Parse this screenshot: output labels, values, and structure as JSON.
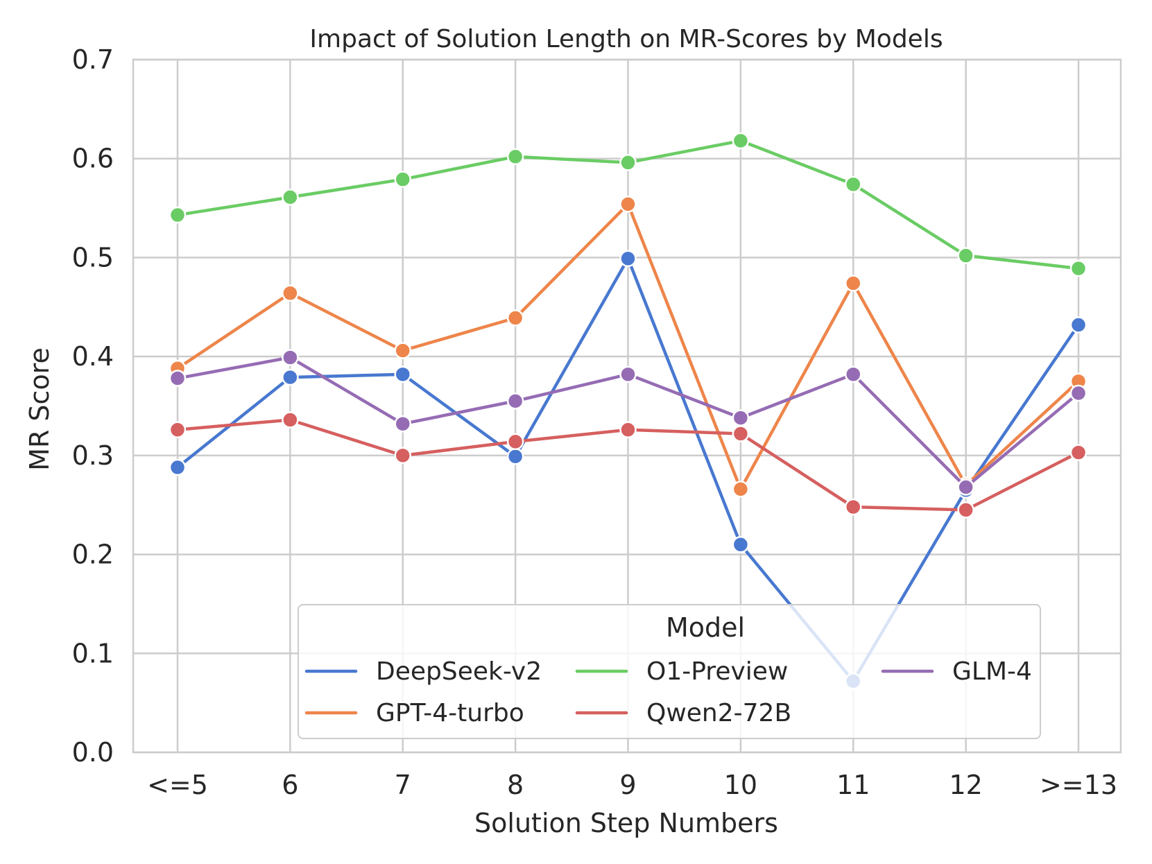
{
  "chart_data": {
    "type": "line",
    "title": "Impact of Solution Length on MR-Scores by Models",
    "xlabel": "Solution Step Numbers",
    "ylabel": "MR Score",
    "categories": [
      "<=5",
      "6",
      "7",
      "8",
      "9",
      "10",
      "11",
      "12",
      ">=13"
    ],
    "ylim": [
      0.0,
      0.7
    ],
    "yticks": [
      "0.0",
      "0.1",
      "0.2",
      "0.3",
      "0.4",
      "0.5",
      "0.6",
      "0.7"
    ],
    "grid": true,
    "legend": {
      "title": "Model",
      "placement": "lower-center",
      "columns": 3
    },
    "series": [
      {
        "name": "DeepSeek-v2",
        "color": "#4878d0",
        "values": [
          0.288,
          0.379,
          0.382,
          0.299,
          0.499,
          0.21,
          0.072,
          0.265,
          0.432
        ]
      },
      {
        "name": "GPT-4-turbo",
        "color": "#ee854a",
        "values": [
          0.388,
          0.464,
          0.406,
          0.439,
          0.554,
          0.266,
          0.474,
          0.27,
          0.375
        ]
      },
      {
        "name": "O1-Preview",
        "color": "#6acc64",
        "values": [
          0.543,
          0.561,
          0.579,
          0.602,
          0.596,
          0.618,
          0.574,
          0.502,
          0.489
        ]
      },
      {
        "name": "Qwen2-72B",
        "color": "#d65f5f",
        "values": [
          0.326,
          0.336,
          0.3,
          0.314,
          0.326,
          0.322,
          0.248,
          0.245,
          0.303
        ]
      },
      {
        "name": "GLM-4",
        "color": "#956cb4",
        "values": [
          0.378,
          0.399,
          0.332,
          0.355,
          0.382,
          0.338,
          0.382,
          0.268,
          0.363
        ]
      }
    ]
  }
}
